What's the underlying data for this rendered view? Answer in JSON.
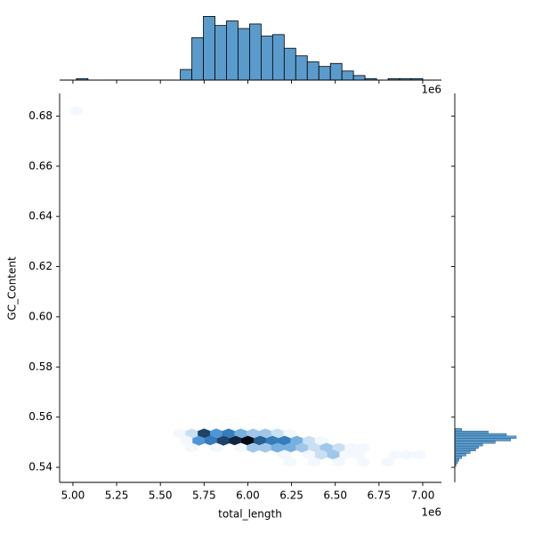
{
  "chart_data": {
    "type": "hexbin",
    "xlabel": "total_length",
    "ylabel": "GC_Content",
    "x_offset": "1e6",
    "xlim": [
      4.924,
      7.107
    ],
    "ylim": [
      0.534,
      0.689
    ],
    "xticks": [
      {
        "value": 5.0,
        "label": "5.00"
      },
      {
        "value": 5.25,
        "label": "5.25"
      },
      {
        "value": 5.5,
        "label": "5.50"
      },
      {
        "value": 5.75,
        "label": "5.75"
      },
      {
        "value": 6.0,
        "label": "6.00"
      },
      {
        "value": 6.25,
        "label": "6.25"
      },
      {
        "value": 6.5,
        "label": "6.50"
      },
      {
        "value": 6.75,
        "label": "6.75"
      },
      {
        "value": 7.0,
        "label": "7.00"
      }
    ],
    "yticks": [
      0.54,
      0.56,
      0.58,
      {
        "value": 0.6,
        "label": "0.60"
      },
      0.62,
      0.64,
      0.66,
      0.68
    ],
    "hex_colors": [
      "#f2f8fd",
      "#3a8ad0",
      "#050a14"
    ],
    "x": [
      5.02,
      5.61,
      5.68,
      5.75,
      5.82,
      5.89,
      5.96,
      6.03,
      6.1,
      6.17,
      6.24,
      5.65,
      5.72,
      5.79,
      5.86,
      5.93,
      6.0,
      6.07,
      6.14,
      6.21,
      6.28,
      6.35,
      6.42,
      5.68,
      5.82,
      5.96,
      6.03,
      6.1,
      6.17,
      6.24,
      6.31,
      6.38,
      6.45,
      6.52,
      6.59,
      6.66,
      6.21,
      6.35,
      6.42,
      6.49,
      6.56,
      6.63,
      6.84,
      6.91,
      6.98,
      6.24,
      6.38,
      6.52,
      6.66,
      6.8
    ],
    "y": [
      0.682,
      0.5535,
      0.5535,
      0.5535,
      0.5535,
      0.5535,
      0.5535,
      0.5535,
      0.5535,
      0.5535,
      0.5535,
      0.5506,
      0.5506,
      0.5506,
      0.5506,
      0.5506,
      0.5506,
      0.5506,
      0.5506,
      0.5506,
      0.5506,
      0.5506,
      0.5506,
      0.5478,
      0.5478,
      0.5478,
      0.5478,
      0.5478,
      0.5478,
      0.5478,
      0.5478,
      0.5478,
      0.5478,
      0.5478,
      0.5478,
      0.5478,
      0.545,
      0.545,
      0.545,
      0.545,
      0.545,
      0.545,
      0.545,
      0.545,
      0.545,
      0.5421,
      0.5421,
      0.5421,
      0.5421,
      0.5421
    ],
    "counts": [
      1,
      1,
      2,
      8,
      5,
      6,
      4,
      3,
      3,
      2,
      1,
      1,
      5,
      6,
      8,
      9,
      10,
      7,
      6,
      6,
      4,
      2,
      1,
      1,
      1,
      1,
      3,
      3,
      4,
      4,
      3,
      2,
      3,
      2,
      1,
      1,
      1,
      1,
      2,
      3,
      1,
      1,
      1,
      1,
      1,
      1,
      1,
      1,
      1,
      1
    ],
    "hist_color": "#5a9bcb",
    "x_marginal": {
      "bins": [
        5.02,
        5.086,
        5.152,
        5.218,
        5.284,
        5.35,
        5.416,
        5.482,
        5.548,
        5.614,
        5.68,
        5.746,
        5.812,
        5.878,
        5.944,
        6.01,
        6.076,
        6.142,
        6.208,
        6.274,
        6.34,
        6.406,
        6.472,
        6.538,
        6.604,
        6.67,
        6.736,
        6.802,
        6.868,
        6.934,
        7.0
      ],
      "counts": [
        1,
        0,
        0,
        0,
        0,
        0,
        0,
        0,
        0,
        7,
        28,
        42,
        36,
        39,
        34,
        37,
        29,
        30,
        21,
        16,
        12,
        9,
        11,
        6,
        3,
        1,
        0,
        1,
        1,
        1
      ],
      "lim": [
        0,
        44
      ]
    },
    "y_marginal": {
      "bins": [
        0.5405,
        0.5415,
        0.5425,
        0.5435,
        0.5445,
        0.5455,
        0.5465,
        0.5475,
        0.5485,
        0.5495,
        0.5505,
        0.5515,
        0.5525,
        0.5535,
        0.5545,
        0.5555
      ],
      "counts": [
        1,
        2,
        3,
        5,
        8,
        11,
        15,
        17,
        20,
        29,
        40,
        44,
        37,
        24,
        5
      ],
      "lim": [
        0,
        44
      ]
    }
  }
}
